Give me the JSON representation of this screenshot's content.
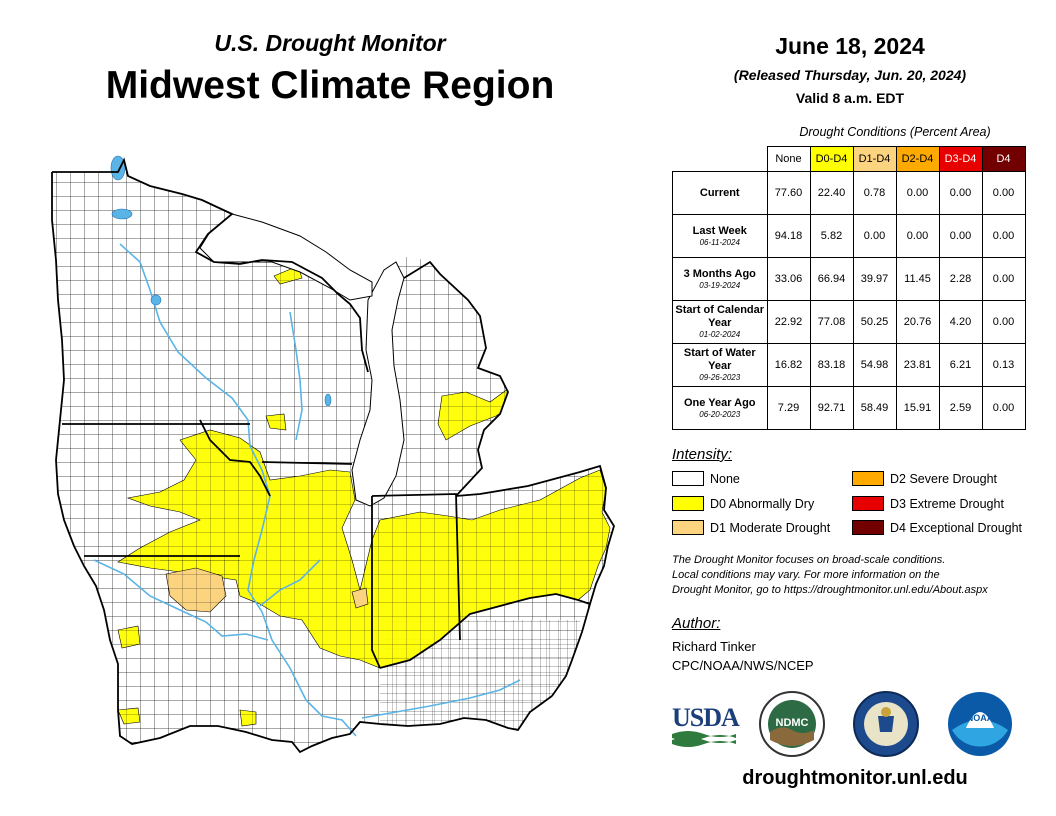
{
  "header": {
    "subtitle": "U.S. Drought Monitor",
    "title": "Midwest Climate Region",
    "date": "June 18, 2024",
    "released": "(Released Thursday, Jun. 20, 2024)",
    "valid": "Valid 8 a.m. EDT"
  },
  "table": {
    "caption": "Drought Conditions (Percent Area)",
    "columns": [
      {
        "label": "None",
        "color": "#ffffff",
        "text_color": "#000000"
      },
      {
        "label": "D0-D4",
        "color": "#ffff00",
        "text_color": "#000000"
      },
      {
        "label": "D1-D4",
        "color": "#fcd37f",
        "text_color": "#000000"
      },
      {
        "label": "D2-D4",
        "color": "#ffaa00",
        "text_color": "#000000"
      },
      {
        "label": "D3-D4",
        "color": "#e60000",
        "text_color": "#ffffff"
      },
      {
        "label": "D4",
        "color": "#730000",
        "text_color": "#ffffff"
      }
    ],
    "rows": [
      {
        "label": "Current",
        "date": "",
        "values": [
          "77.60",
          "22.40",
          "0.78",
          "0.00",
          "0.00",
          "0.00"
        ]
      },
      {
        "label": "Last Week",
        "date": "06-11-2024",
        "values": [
          "94.18",
          "5.82",
          "0.00",
          "0.00",
          "0.00",
          "0.00"
        ]
      },
      {
        "label": "3 Months Ago",
        "date": "03-19-2024",
        "values": [
          "33.06",
          "66.94",
          "39.97",
          "11.45",
          "2.28",
          "0.00"
        ]
      },
      {
        "label": "Start of Calendar Year",
        "date": "01-02-2024",
        "values": [
          "22.92",
          "77.08",
          "50.25",
          "20.76",
          "4.20",
          "0.00"
        ]
      },
      {
        "label": "Start of Water Year",
        "date": "09-26-2023",
        "values": [
          "16.82",
          "83.18",
          "54.98",
          "23.81",
          "6.21",
          "0.13"
        ]
      },
      {
        "label": "One Year Ago",
        "date": "06-20-2023",
        "values": [
          "7.29",
          "92.71",
          "58.49",
          "15.91",
          "2.59",
          "0.00"
        ]
      }
    ]
  },
  "legend": {
    "heading": "Intensity:",
    "items": [
      {
        "label": "None",
        "color": "#ffffff"
      },
      {
        "label": "D0 Abnormally Dry",
        "color": "#ffff00"
      },
      {
        "label": "D1 Moderate Drought",
        "color": "#fcd37f"
      },
      {
        "label": "D2 Severe Drought",
        "color": "#ffaa00"
      },
      {
        "label": "D3 Extreme Drought",
        "color": "#e60000"
      },
      {
        "label": "D4 Exceptional Drought",
        "color": "#730000"
      }
    ]
  },
  "note": {
    "line1": "The Drought Monitor focuses on broad-scale conditions.",
    "line2": "Local conditions may vary. For more information on the",
    "line3": "Drought Monitor, go to https://droughtmonitor.unl.edu/About.aspx"
  },
  "author": {
    "heading": "Author:",
    "name": "Richard Tinker",
    "org": "CPC/NOAA/NWS/NCEP"
  },
  "logos": {
    "usda": "USDA",
    "ndmc": "NDMC",
    "noaa": "NOAA"
  },
  "footer": {
    "url": "droughtmonitor.unl.edu"
  },
  "map": {
    "colors": {
      "d0": "#ffff00",
      "d1": "#fcd37f",
      "water": "#5ab4e6",
      "border": "#000000"
    }
  }
}
